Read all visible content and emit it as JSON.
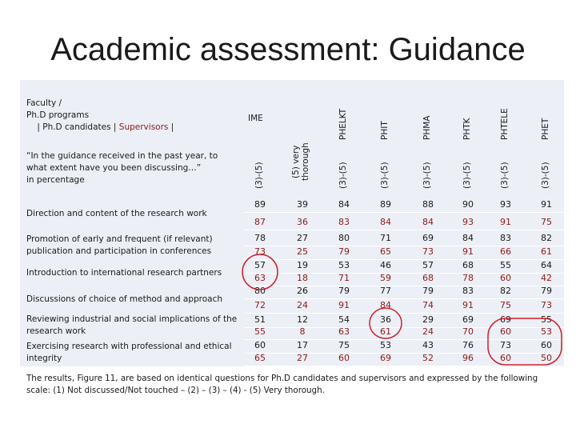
{
  "title": "Academic assessment: Guidance",
  "table": {
    "header_left": {
      "line1": "Faculty /",
      "line2": "Ph.D programs",
      "line3a": "| Ph.D candidates |",
      "line3b": "Supervisors",
      "line3c": "|"
    },
    "question": "“In the guidance received in the past year, to what extent have you been discussing…”",
    "question_unit": "in percentage",
    "group_header": "IME",
    "columns": [
      "PHELKT",
      "PHIT",
      "PHMA",
      "PHTK",
      "PHTELE",
      "PHET"
    ],
    "subheaders": [
      "(3)-(5)",
      "(5) very thorough",
      "(3)-(5)",
      "(3)-(5)",
      "(3)-(5)",
      "(3)-(5)",
      "(3)-(5)",
      "(3)-(5)"
    ],
    "rows": [
      {
        "label": "Direction and content of the research work",
        "candidates": [
          89,
          39,
          84,
          89,
          88,
          90,
          93,
          91
        ],
        "supervisors": [
          87,
          36,
          83,
          84,
          84,
          93,
          91,
          75
        ]
      },
      {
        "label": "Promotion of early and frequent (if relevant) publication and participation in conferences",
        "candidates": [
          78,
          27,
          80,
          71,
          69,
          84,
          83,
          82
        ],
        "supervisors": [
          73,
          25,
          79,
          65,
          73,
          91,
          66,
          61
        ]
      },
      {
        "label": "Introduction to international research partners",
        "candidates": [
          57,
          19,
          53,
          46,
          57,
          68,
          55,
          64
        ],
        "supervisors": [
          63,
          18,
          71,
          59,
          68,
          78,
          60,
          42
        ]
      },
      {
        "label": "Discussions of choice of method and approach",
        "candidates": [
          80,
          26,
          79,
          77,
          79,
          83,
          82,
          79
        ],
        "supervisors": [
          72,
          24,
          91,
          84,
          74,
          91,
          75,
          73
        ]
      },
      {
        "label": "Reviewing industrial and social implications of the research work",
        "candidates": [
          51,
          12,
          54,
          36,
          29,
          69,
          69,
          55
        ],
        "supervisors": [
          55,
          8,
          63,
          61,
          24,
          70,
          60,
          53
        ]
      },
      {
        "label": "Exercising research with professional and ethical integrity",
        "candidates": [
          60,
          17,
          75,
          53,
          43,
          76,
          73,
          60
        ],
        "supervisors": [
          65,
          27,
          60,
          69,
          52,
          96,
          60,
          50
        ]
      }
    ]
  },
  "footer": "The results, Figure 11, are based on identical questions for Ph.D candidates and supervisors and expressed by the following scale: (1) Not discussed/Not touched – (2) – (3) – (4) - (5) Very thorough."
}
